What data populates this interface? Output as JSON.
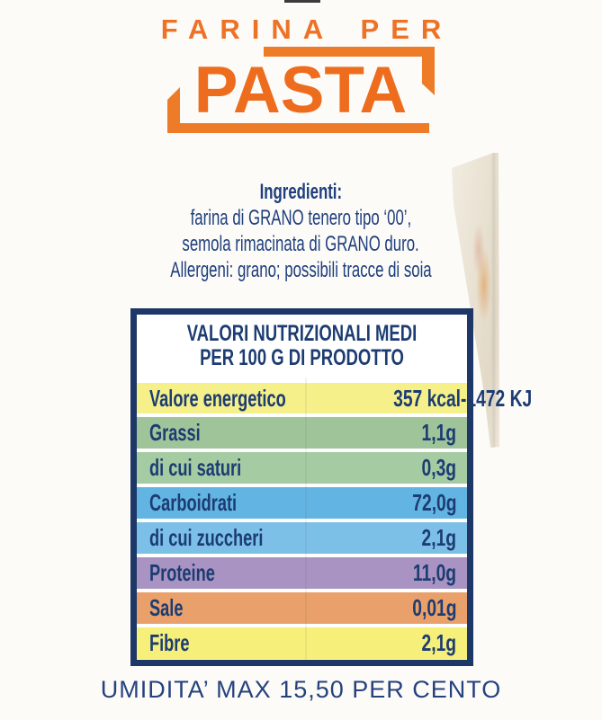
{
  "package": {
    "brand_line1": "FARINA PER",
    "brand_line2": "PASTA"
  },
  "ingredients": {
    "title": "Ingredienti:",
    "lines": [
      "farina di GRANO tenero tipo ‘00’,",
      "semola rimacinata di GRANO duro.",
      "Allergeni: grano; possibili tracce di soia"
    ]
  },
  "nutrition_table": {
    "header_line1": "VALORI NUTRIZIONALI MEDI",
    "header_line2": "PER 100 G DI PRODOTTO",
    "rows": [
      {
        "label": "Valore energetico",
        "value": "357 kcal-1472 KJ",
        "color": "#f5f08a"
      },
      {
        "label": "Grassi",
        "value": "1,1g",
        "color": "#9fc49a"
      },
      {
        "label": "di cui saturi",
        "value": "0,3g",
        "color": "#a5cba2"
      },
      {
        "label": "Carboidrati",
        "value": "72,0g",
        "color": "#62b5e3"
      },
      {
        "label": "di cui zuccheri",
        "value": "2,1g",
        "color": "#7cc0e8"
      },
      {
        "label": "Proteine",
        "value": "11,0g",
        "color": "#a893c2"
      },
      {
        "label": "Sale",
        "value": "0,01g",
        "color": "#e9a06b"
      },
      {
        "label": "Fibre",
        "value": "2,1g",
        "color": "#f6ef7a"
      }
    ]
  },
  "footer": {
    "text": "UMIDITA’ MAX 15,50 PER CENTO"
  },
  "colors": {
    "brand_orange": "#ed7125",
    "navy_text": "#1c3c72",
    "table_border": "#1d3766"
  }
}
